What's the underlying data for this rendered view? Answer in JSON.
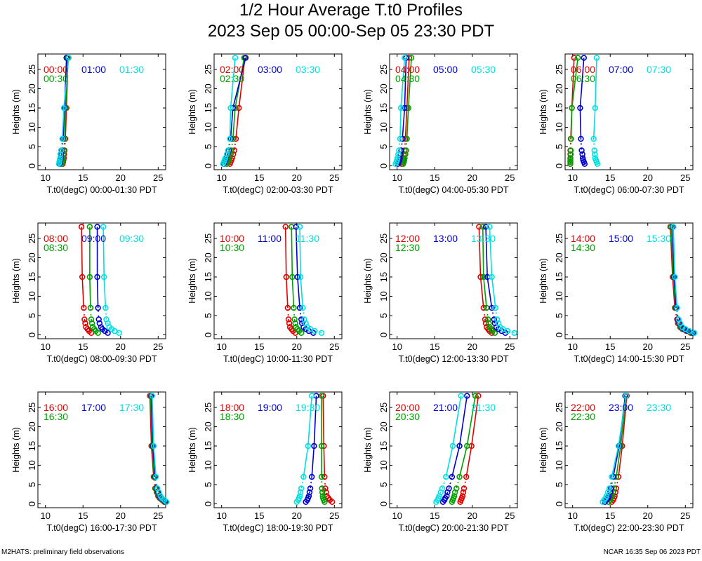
{
  "title": "1/2 Hour Average T.t0 Profiles",
  "subtitle": "2023 Sep 05 00:00-Sep 05 23:30 PDT",
  "footer_left": "M2HATS: preliminary field observations",
  "footer_right": "NCAR 16:35 Sep 06 2023 PDT",
  "series_colors": [
    "#e00000",
    "#00a000",
    "#0000d0",
    "#00e0e0"
  ],
  "chart_data": [
    {
      "type": "scatter",
      "xlabel": "T.t0(degC) 00:00-01:30 PDT",
      "ylabel": "Heights (m)",
      "xlim": [
        9,
        26
      ],
      "ylim": [
        -1,
        29
      ],
      "xticks": [
        10,
        15,
        20,
        25
      ],
      "yticks": [
        0,
        5,
        10,
        15,
        20,
        25
      ],
      "heights": [
        0.5,
        1,
        1.5,
        2,
        3,
        4,
        7,
        15,
        28
      ],
      "series": [
        {
          "name": "00:00",
          "values": [
            12.3,
            12.35,
            12.4,
            12.45,
            12.5,
            12.55,
            12.65,
            12.8,
            13.0
          ]
        },
        {
          "name": "00:30",
          "values": [
            12.2,
            12.25,
            12.3,
            12.35,
            12.4,
            12.45,
            12.55,
            12.7,
            12.9
          ]
        },
        {
          "name": "01:00",
          "values": [
            11.9,
            11.95,
            12.0,
            12.05,
            12.1,
            12.2,
            12.35,
            12.55,
            12.8
          ]
        },
        {
          "name": "01:30",
          "values": [
            11.8,
            11.85,
            11.9,
            11.95,
            12.0,
            12.1,
            12.25,
            12.45,
            13.1
          ]
        }
      ]
    },
    {
      "type": "scatter",
      "xlabel": "T.t0(degC) 02:00-03:30 PDT",
      "ylabel": "Heights (m)",
      "xlim": [
        9,
        26
      ],
      "ylim": [
        -1,
        29
      ],
      "xticks": [
        10,
        15,
        20,
        25
      ],
      "yticks": [
        0,
        5,
        10,
        15,
        20,
        25
      ],
      "heights": [
        0.5,
        1,
        1.5,
        2,
        3,
        4,
        7,
        15,
        28
      ],
      "series": [
        {
          "name": "02:00",
          "values": [
            11.1,
            11.2,
            11.3,
            11.4,
            11.55,
            11.7,
            11.9,
            12.3,
            13.1
          ]
        },
        {
          "name": "02:30",
          "values": [
            10.7,
            10.8,
            10.9,
            11.0,
            11.15,
            11.3,
            11.5,
            11.8,
            13.0
          ]
        },
        {
          "name": "03:00",
          "values": [
            10.3,
            10.4,
            10.5,
            10.6,
            10.8,
            10.95,
            11.2,
            11.5,
            13.2
          ]
        },
        {
          "name": "03:30",
          "values": [
            10.2,
            10.3,
            10.4,
            10.5,
            10.7,
            10.85,
            11.1,
            11.2,
            11.8
          ]
        }
      ]
    },
    {
      "type": "scatter",
      "xlabel": "T.t0(degC) 04:00-05:30 PDT",
      "ylabel": "Heights (m)",
      "xlim": [
        9,
        26
      ],
      "ylim": [
        -1,
        29
      ],
      "xticks": [
        10,
        15,
        20,
        25
      ],
      "yticks": [
        0,
        5,
        10,
        15,
        20,
        25
      ],
      "heights": [
        0.5,
        1,
        1.5,
        2,
        3,
        4,
        7,
        15,
        28
      ],
      "series": [
        {
          "name": "04:00",
          "values": [
            10.6,
            10.7,
            10.75,
            10.8,
            10.9,
            11.0,
            11.1,
            11.3,
            11.6
          ]
        },
        {
          "name": "04:30",
          "values": [
            10.8,
            10.9,
            10.95,
            11.0,
            11.1,
            11.2,
            11.3,
            11.5,
            11.9
          ]
        },
        {
          "name": "05:00",
          "values": [
            10.1,
            10.2,
            10.3,
            10.35,
            10.45,
            10.55,
            10.7,
            11.0,
            11.2
          ]
        },
        {
          "name": "05:30",
          "values": [
            9.8,
            9.9,
            10.0,
            10.05,
            10.15,
            10.25,
            10.4,
            10.5,
            11.0
          ]
        }
      ]
    },
    {
      "type": "scatter",
      "xlabel": "T.t0(degC) 06:00-07:30 PDT",
      "ylabel": "Heights (m)",
      "xlim": [
        9,
        26
      ],
      "ylim": [
        -1,
        29
      ],
      "xticks": [
        10,
        15,
        20,
        25
      ],
      "yticks": [
        0,
        5,
        10,
        15,
        20,
        25
      ],
      "heights": [
        0.5,
        1,
        1.5,
        2,
        3,
        4,
        7,
        15,
        28
      ],
      "series": [
        {
          "name": "06:00",
          "values": [
            9.7,
            9.7,
            9.7,
            9.7,
            9.7,
            9.7,
            9.75,
            9.9,
            10.2
          ]
        },
        {
          "name": "06:30",
          "values": [
            9.7,
            9.7,
            9.7,
            9.7,
            9.75,
            9.75,
            9.8,
            9.9,
            10.7
          ]
        },
        {
          "name": "07:00",
          "values": [
            11.6,
            11.5,
            11.4,
            11.35,
            11.3,
            11.2,
            11.1,
            11.0,
            11.5
          ]
        },
        {
          "name": "07:30",
          "values": [
            13.3,
            13.2,
            13.1,
            13.0,
            12.95,
            12.9,
            12.8,
            13.0,
            13.2
          ]
        }
      ]
    },
    {
      "type": "scatter",
      "xlabel": "T.t0(degC) 08:00-09:30 PDT",
      "ylabel": "Heights (m)",
      "xlim": [
        9,
        26
      ],
      "ylim": [
        -1,
        29
      ],
      "xticks": [
        10,
        15,
        20,
        25
      ],
      "yticks": [
        0,
        5,
        10,
        15,
        20,
        25
      ],
      "heights": [
        0.5,
        1,
        1.5,
        2,
        3,
        4,
        7,
        15,
        28
      ],
      "series": [
        {
          "name": "08:00",
          "values": [
            16.1,
            15.8,
            15.6,
            15.4,
            15.3,
            15.2,
            15.1,
            14.9,
            14.8
          ]
        },
        {
          "name": "08:30",
          "values": [
            17.0,
            16.7,
            16.5,
            16.3,
            16.2,
            16.1,
            16.0,
            15.9,
            15.9
          ]
        },
        {
          "name": "09:00",
          "values": [
            18.3,
            17.9,
            17.6,
            17.4,
            17.2,
            17.1,
            17.0,
            16.9,
            16.9
          ]
        },
        {
          "name": "09:30",
          "values": [
            19.8,
            19.2,
            18.8,
            18.5,
            18.3,
            18.1,
            18.0,
            17.8,
            17.7
          ]
        }
      ]
    },
    {
      "type": "scatter",
      "xlabel": "T.t0(degC) 10:00-11:30 PDT",
      "ylabel": "Heights (m)",
      "xlim": [
        9,
        26
      ],
      "ylim": [
        -1,
        29
      ],
      "xticks": [
        10,
        15,
        20,
        25
      ],
      "yticks": [
        0,
        5,
        10,
        15,
        20,
        25
      ],
      "heights": [
        0.5,
        1,
        1.5,
        2,
        3,
        4,
        7,
        15,
        28
      ],
      "series": [
        {
          "name": "10:00",
          "values": [
            19.8,
            19.5,
            19.3,
            19.1,
            19.0,
            18.9,
            18.8,
            18.6,
            18.5
          ]
        },
        {
          "name": "10:30",
          "values": [
            20.6,
            20.3,
            20.1,
            19.9,
            19.8,
            19.7,
            19.6,
            19.4,
            19.3
          ]
        },
        {
          "name": "11:00",
          "values": [
            22.2,
            21.6,
            21.2,
            20.9,
            20.7,
            20.6,
            20.4,
            20.1,
            19.9
          ]
        },
        {
          "name": "11:30",
          "values": [
            23.3,
            22.4,
            21.8,
            21.4,
            21.2,
            21.0,
            20.8,
            20.5,
            20.4
          ]
        }
      ]
    },
    {
      "type": "scatter",
      "xlabel": "T.t0(degC) 12:00-13:30 PDT",
      "ylabel": "Heights (m)",
      "xlim": [
        9,
        26
      ],
      "ylim": [
        -1,
        29
      ],
      "xticks": [
        10,
        15,
        20,
        25
      ],
      "yticks": [
        0,
        5,
        10,
        15,
        20,
        25
      ],
      "heights": [
        0.5,
        1,
        1.5,
        2,
        3,
        4,
        7,
        15,
        28
      ],
      "series": [
        {
          "name": "12:00",
          "values": [
            22.6,
            22.3,
            22.1,
            21.9,
            21.8,
            21.7,
            21.5,
            21.1,
            20.9
          ]
        },
        {
          "name": "12:30",
          "values": [
            23.0,
            22.7,
            22.5,
            22.3,
            22.2,
            22.1,
            21.9,
            21.5,
            21.4
          ]
        },
        {
          "name": "13:00",
          "values": [
            24.4,
            23.9,
            23.5,
            23.2,
            23.0,
            22.9,
            22.6,
            22.0,
            21.8
          ]
        },
        {
          "name": "13:30",
          "values": [
            25.6,
            24.7,
            24.1,
            23.7,
            23.5,
            23.3,
            23.1,
            22.6,
            22.3
          ]
        }
      ]
    },
    {
      "type": "scatter",
      "xlabel": "T.t0(degC) 14:00-15:30 PDT",
      "ylabel": "Heights (m)",
      "xlim": [
        9,
        26
      ],
      "ylim": [
        -1,
        29
      ],
      "xticks": [
        10,
        15,
        20,
        25
      ],
      "yticks": [
        0,
        5,
        10,
        15,
        20,
        25
      ],
      "heights": [
        0.5,
        1,
        1.5,
        2,
        3,
        4,
        7,
        15,
        28
      ],
      "series": [
        {
          "name": "14:00",
          "values": [
            25.7,
            25.1,
            24.6,
            24.3,
            24.0,
            23.9,
            23.6,
            23.3,
            23.0
          ]
        },
        {
          "name": "14:30",
          "values": [
            25.8,
            25.2,
            24.7,
            24.4,
            24.1,
            24.0,
            23.7,
            23.4,
            23.1
          ]
        },
        {
          "name": "15:00",
          "values": [
            26.0,
            25.3,
            24.8,
            24.5,
            24.2,
            24.0,
            23.8,
            23.5,
            23.3
          ]
        },
        {
          "name": "15:30",
          "values": [
            26.2,
            25.5,
            25.0,
            24.6,
            24.3,
            24.1,
            23.9,
            23.6,
            23.4
          ]
        }
      ]
    },
    {
      "type": "scatter",
      "xlabel": "T.t0(degC) 16:00-17:30 PDT",
      "ylabel": "Heights (m)",
      "xlim": [
        9,
        26
      ],
      "ylim": [
        -1,
        29
      ],
      "xticks": [
        10,
        15,
        20,
        25
      ],
      "yticks": [
        0,
        5,
        10,
        15,
        20,
        25
      ],
      "heights": [
        0.5,
        1,
        1.5,
        2,
        3,
        4,
        7,
        15,
        28
      ],
      "series": [
        {
          "name": "16:00",
          "values": [
            25.8,
            25.5,
            25.2,
            25.0,
            24.8,
            24.6,
            24.4,
            24.1,
            23.9
          ]
        },
        {
          "name": "16:30",
          "values": [
            25.9,
            25.6,
            25.3,
            25.1,
            24.9,
            24.7,
            24.5,
            24.2,
            24.0
          ]
        },
        {
          "name": "17:00",
          "values": [
            26.0,
            25.7,
            25.4,
            25.2,
            25.0,
            24.8,
            24.6,
            24.3,
            24.1
          ]
        },
        {
          "name": "17:30",
          "values": [
            26.1,
            25.8,
            25.5,
            25.3,
            25.1,
            24.9,
            24.7,
            24.4,
            24.2
          ]
        }
      ]
    },
    {
      "type": "scatter",
      "xlabel": "T.t0(degC) 18:00-19:30 PDT",
      "ylabel": "Heights (m)",
      "xlim": [
        9,
        26
      ],
      "ylim": [
        -1,
        29
      ],
      "xticks": [
        10,
        15,
        20,
        25
      ],
      "yticks": [
        0,
        5,
        10,
        15,
        20,
        25
      ],
      "heights": [
        0.5,
        1,
        1.5,
        2,
        3,
        4,
        7,
        15,
        28
      ],
      "series": [
        {
          "name": "18:00",
          "values": [
            24.7,
            24.4,
            24.2,
            24.0,
            23.9,
            23.8,
            23.7,
            23.6,
            23.5
          ]
        },
        {
          "name": "18:30",
          "values": [
            23.7,
            23.6,
            23.5,
            23.45,
            23.4,
            23.35,
            23.3,
            23.3,
            23.3
          ]
        },
        {
          "name": "19:00",
          "values": [
            21.2,
            21.4,
            21.5,
            21.6,
            21.7,
            21.8,
            22.0,
            22.3,
            22.6
          ]
        },
        {
          "name": "19:30",
          "values": [
            20.0,
            20.2,
            20.3,
            20.4,
            20.5,
            20.6,
            20.9,
            21.5,
            22.0
          ]
        }
      ]
    },
    {
      "type": "scatter",
      "xlabel": "T.t0(degC) 20:00-21:30 PDT",
      "ylabel": "Heights (m)",
      "xlim": [
        9,
        26
      ],
      "ylim": [
        -1,
        29
      ],
      "xticks": [
        10,
        15,
        20,
        25
      ],
      "yticks": [
        0,
        5,
        10,
        15,
        20,
        25
      ],
      "heights": [
        0.5,
        1,
        1.5,
        2,
        3,
        4,
        7,
        15,
        28
      ],
      "series": [
        {
          "name": "20:00",
          "values": [
            18.4,
            18.5,
            18.6,
            18.7,
            18.8,
            18.9,
            19.2,
            19.9,
            20.8
          ]
        },
        {
          "name": "20:30",
          "values": [
            17.3,
            17.4,
            17.5,
            17.6,
            17.7,
            17.9,
            18.3,
            19.3,
            20.4
          ]
        },
        {
          "name": "21:00",
          "values": [
            16.1,
            16.3,
            16.4,
            16.6,
            16.7,
            16.9,
            17.3,
            18.3,
            19.3
          ]
        },
        {
          "name": "21:30",
          "values": [
            15.2,
            15.4,
            15.5,
            15.6,
            15.8,
            16.0,
            16.5,
            17.4,
            18.5
          ]
        }
      ]
    },
    {
      "type": "scatter",
      "xlabel": "T.t0(degC) 22:00-23:30 PDT",
      "ylabel": "Heights (m)",
      "xlim": [
        9,
        26
      ],
      "ylim": [
        -1,
        29
      ],
      "xticks": [
        10,
        15,
        20,
        25
      ],
      "yticks": [
        0,
        5,
        10,
        15,
        20,
        25
      ],
      "heights": [
        0.5,
        1,
        1.5,
        2,
        3,
        4,
        7,
        15,
        28
      ],
      "series": [
        {
          "name": "22:00",
          "values": [
            15.2,
            15.4,
            15.5,
            15.6,
            15.7,
            15.8,
            16.1,
            16.6,
            17.2
          ]
        },
        {
          "name": "22:30",
          "values": [
            14.8,
            15.0,
            15.1,
            15.2,
            15.4,
            15.5,
            15.8,
            16.4,
            17.1
          ]
        },
        {
          "name": "23:00",
          "values": [
            14.3,
            14.5,
            14.7,
            14.8,
            15.0,
            15.1,
            15.4,
            16.2,
            17.0
          ]
        },
        {
          "name": "23:30",
          "values": [
            14.0,
            14.2,
            14.4,
            14.5,
            14.7,
            14.9,
            15.2,
            16.1,
            17.1
          ]
        }
      ]
    }
  ]
}
